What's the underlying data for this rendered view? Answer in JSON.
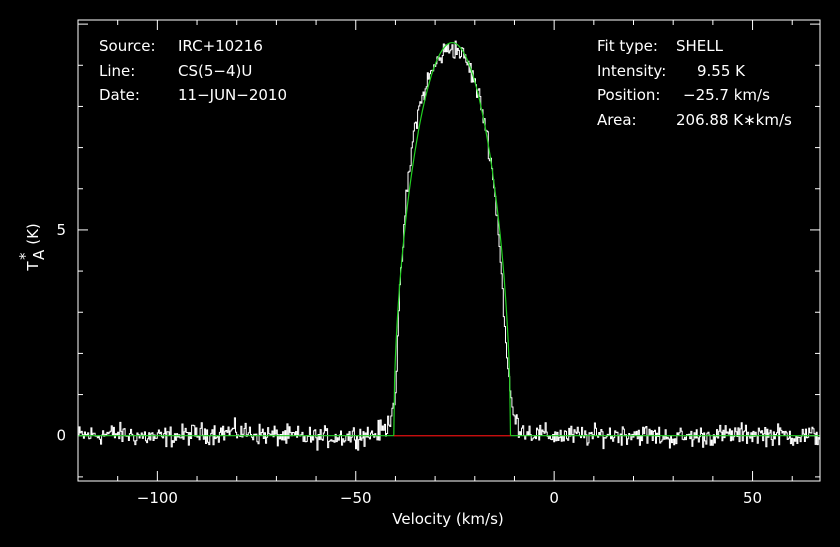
{
  "header": {
    "left": [
      {
        "label": "Source:",
        "value": "IRC+10216"
      },
      {
        "label": "Line:",
        "value": "CS(5−4)U"
      },
      {
        "label": "Date:",
        "value": "11−JUN−2010"
      }
    ],
    "right": [
      {
        "label": "Fit type:",
        "value": "SHELL"
      },
      {
        "label": "Intensity:",
        "value": "9.55 K"
      },
      {
        "label": "Position:",
        "value": "−25.7 km/s"
      },
      {
        "label": "Area:",
        "value": "206.88 K∗km/s"
      }
    ]
  },
  "chart_data": {
    "type": "line",
    "xlabel": "Velocity (km/s)",
    "ylabel": "T*A (K)",
    "ylabel_main": "T",
    "ylabel_sup": "*",
    "ylabel_sub": "A",
    "ylabel_unit": "(K)",
    "xlim": [
      -120,
      67
    ],
    "ylim": [
      -1.1,
      10.1
    ],
    "x_ticks": [
      -100,
      -50,
      0,
      50
    ],
    "x_tick_labels": [
      "−100",
      "−50",
      "0",
      "50"
    ],
    "y_ticks": [
      0,
      5
    ],
    "y_tick_labels": [
      "0",
      "5"
    ],
    "colors": {
      "spectrum": "#ffffff",
      "fit": "#22d022",
      "baseline": "#e01010",
      "background": "#000000"
    },
    "series": [
      {
        "role": "spectrum",
        "x": [
          -120,
          -110,
          -100,
          -90,
          -80,
          -70,
          -60,
          -50,
          -45,
          -42,
          -40,
          -39,
          -38,
          -37,
          -35,
          -32,
          -30,
          -28,
          -26,
          -24,
          -22,
          -20,
          -18,
          -16,
          -14,
          -13,
          -12,
          -11,
          -10,
          -8,
          -5,
          0,
          10,
          20,
          30,
          40,
          50,
          60,
          67
        ],
        "y": [
          0,
          0.05,
          -0.05,
          0.05,
          0.1,
          0,
          -0.05,
          0,
          0.05,
          0.2,
          1.0,
          3.2,
          4.8,
          6.0,
          7.6,
          8.6,
          9.0,
          9.3,
          9.45,
          9.35,
          9.1,
          8.6,
          7.9,
          6.8,
          5.0,
          3.6,
          2.0,
          1.0,
          0.4,
          0.15,
          0.05,
          0,
          0,
          0.05,
          -0.05,
          0,
          0.05,
          0,
          0
        ]
      },
      {
        "role": "fit",
        "model": "shell",
        "peak": 9.55,
        "center": -25.7,
        "half_width": 14.7,
        "horn": -0.15
      },
      {
        "role": "baseline",
        "x": [
          -40.4,
          -11.0
        ],
        "y": [
          0,
          0
        ]
      }
    ]
  }
}
